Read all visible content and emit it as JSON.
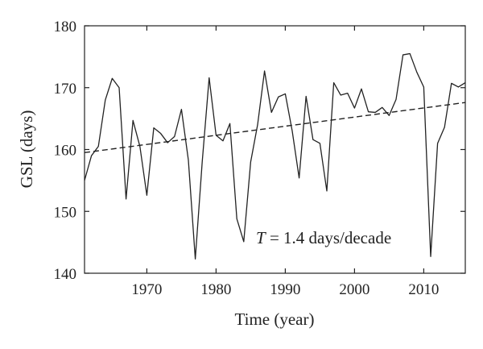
{
  "chart_data": {
    "type": "line",
    "title": "",
    "xlabel": "Time (year)",
    "ylabel": "GSL (days)",
    "xlim": [
      1961,
      2016
    ],
    "ylim": [
      140,
      180
    ],
    "xticks": [
      1970,
      1980,
      1990,
      2000,
      2010
    ],
    "yticks": [
      140,
      150,
      160,
      170,
      180
    ],
    "grid": false,
    "x": [
      1961,
      1962,
      1963,
      1964,
      1965,
      1966,
      1967,
      1968,
      1969,
      1970,
      1971,
      1972,
      1973,
      1974,
      1975,
      1976,
      1977,
      1978,
      1979,
      1980,
      1981,
      1982,
      1983,
      1984,
      1985,
      1986,
      1987,
      1988,
      1989,
      1990,
      1991,
      1992,
      1993,
      1994,
      1995,
      1996,
      1997,
      1998,
      1999,
      2000,
      2001,
      2002,
      2003,
      2004,
      2005,
      2006,
      2007,
      2008,
      2009,
      2010,
      2011,
      2012,
      2013,
      2014,
      2015,
      2016
    ],
    "series": [
      {
        "style": "solid",
        "color": "#222222",
        "values": [
          155,
          159,
          160.5,
          168,
          171.5,
          170,
          152,
          164.7,
          160.5,
          152.6,
          163.5,
          162.6,
          161.1,
          162.1,
          166.5,
          158.3,
          142.3,
          158,
          171.6,
          162.3,
          161.4,
          164.2,
          148.8,
          145.1,
          158,
          164,
          172.7,
          166,
          168.5,
          169,
          163,
          155.4,
          168.6,
          161.6,
          161,
          153.3,
          170.8,
          168.8,
          169.1,
          166.7,
          169.8,
          166.1,
          166,
          166.8,
          165.5,
          168.1,
          175.3,
          175.5,
          172.5,
          170.1,
          142.7,
          161,
          163.6,
          170.7,
          170.1,
          170.8
        ]
      },
      {
        "style": "dashed",
        "color": "#222222",
        "trend": true,
        "values_at_limits": [
          159.5,
          167.6
        ]
      }
    ],
    "annotation": {
      "variable": "T",
      "text": " = 1.4 days/decade"
    }
  }
}
